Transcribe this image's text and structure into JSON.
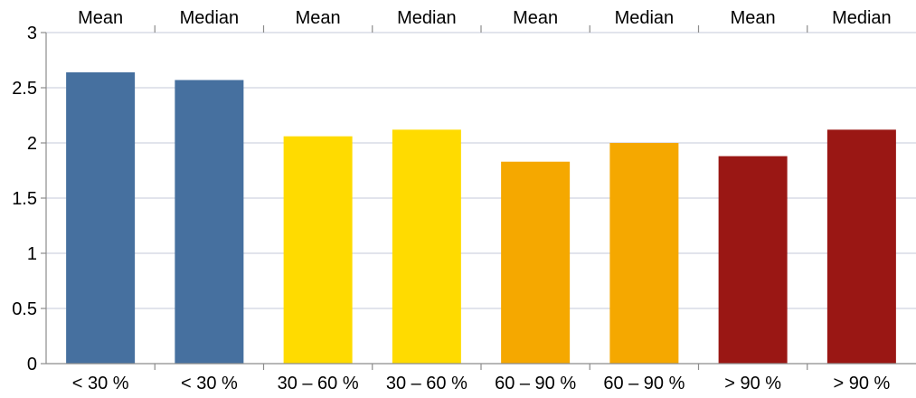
{
  "chart_data": {
    "type": "bar",
    "categories": [
      "< 30 %",
      "< 30 %",
      "30 – 60 %",
      "30 – 60 %",
      "60 – 90 %",
      "60 – 90 %",
      "> 90 %",
      "> 90 %"
    ],
    "top_labels": [
      "Mean",
      "Median",
      "Mean",
      "Median",
      "Mean",
      "Median",
      "Mean",
      "Median"
    ],
    "values": [
      2.64,
      2.57,
      2.06,
      2.12,
      1.83,
      2.0,
      1.88,
      2.12
    ],
    "colors": [
      "#46709f",
      "#46709f",
      "#ffdb00",
      "#ffdb00",
      "#f5a800",
      "#f5a800",
      "#9a1714",
      "#9a1714"
    ],
    "title": "",
    "xlabel": "",
    "ylabel": "",
    "ylim": [
      0,
      3
    ],
    "yticks": [
      "0",
      "0.5",
      "1",
      "1.5",
      "2",
      "2.5",
      "3"
    ],
    "grid": true,
    "grid_color": "#d0d4e0",
    "axis_color": "#8c8c8c"
  }
}
